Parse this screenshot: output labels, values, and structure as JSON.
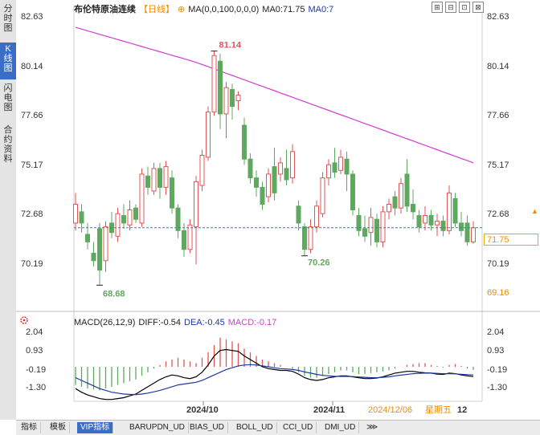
{
  "sidebar": {
    "items": [
      {
        "label": "分\n时\n图",
        "active": false
      },
      {
        "label": "K\n线\n图",
        "active": true
      },
      {
        "label": "闪\n电\n图",
        "active": false
      },
      {
        "label": "合\n约\n资\n料",
        "active": false
      }
    ]
  },
  "header": {
    "symbol": "布伦特原油连续",
    "period": "【日线】",
    "ma_settings": "MA(0,0,100,0,0,0)",
    "ma_value": "MA0:71.75",
    "ma7": "MA0:7"
  },
  "price_axis": {
    "labels": [
      "82.63",
      "80.14",
      "77.66",
      "75.17",
      "72.68",
      "70.19",
      "69.16"
    ],
    "current": "71.75"
  },
  "annotations": {
    "high": "81.14",
    "low1": "68.68",
    "low2": "70.26"
  },
  "macd": {
    "name": "MACD(26,12,9)",
    "diff": "DIFF:-0.54",
    "dea": "DEA:-0.45",
    "macd": "MACD:-0.17",
    "labels": [
      "2.04",
      "0.93",
      "-0.19",
      "-1.30"
    ]
  },
  "time_axis": {
    "labels": [
      "2024/10",
      "2024/11"
    ],
    "date": "2024/12/06",
    "weekday": "星期五",
    "hour": "12"
  },
  "bottom_tabs": [
    "指标",
    "模板",
    "VIP指标",
    "BARUPDN_UD",
    "BIAS_UD",
    "BOLL_UD",
    "CCI_UD",
    "DMI_UD"
  ],
  "colors": {
    "up": "#e05555",
    "down": "#5fa85f",
    "ma": "#d23cd2",
    "diff": "#000000",
    "dea": "#1a3aa0",
    "accent": "#3a6ec6"
  },
  "chart_data": {
    "type": "candlestick",
    "ylim": [
      68.5,
      83.0
    ],
    "ma_start": 82.4,
    "ma_end": 75.2,
    "candles": [
      {
        "o": 72.0,
        "c": 73.0,
        "h": 73.6,
        "l": 71.6
      },
      {
        "o": 72.6,
        "c": 72.0,
        "h": 73.0,
        "l": 71.5
      },
      {
        "o": 71.4,
        "c": 71.0,
        "h": 72.0,
        "l": 70.6
      },
      {
        "o": 70.4,
        "c": 70.0,
        "h": 71.0,
        "l": 69.7
      },
      {
        "o": 71.7,
        "c": 69.5,
        "h": 72.0,
        "l": 68.7
      },
      {
        "o": 70.0,
        "c": 71.8,
        "h": 72.1,
        "l": 69.4
      },
      {
        "o": 72.0,
        "c": 71.5,
        "h": 72.6,
        "l": 71.2
      },
      {
        "o": 71.3,
        "c": 72.5,
        "h": 72.8,
        "l": 71.0
      },
      {
        "o": 72.4,
        "c": 72.0,
        "h": 73.0,
        "l": 71.7
      },
      {
        "o": 71.9,
        "c": 72.7,
        "h": 73.2,
        "l": 71.6
      },
      {
        "o": 72.8,
        "c": 72.2,
        "h": 73.0,
        "l": 72.0
      },
      {
        "o": 72.0,
        "c": 74.6,
        "h": 74.9,
        "l": 71.8
      },
      {
        "o": 74.5,
        "c": 73.9,
        "h": 75.0,
        "l": 73.5
      },
      {
        "o": 73.7,
        "c": 74.9,
        "h": 75.2,
        "l": 73.5
      },
      {
        "o": 74.9,
        "c": 73.9,
        "h": 75.2,
        "l": 73.3
      },
      {
        "o": 73.9,
        "c": 75.0,
        "h": 75.3,
        "l": 73.5
      },
      {
        "o": 74.4,
        "c": 72.8,
        "h": 74.8,
        "l": 72.5
      },
      {
        "o": 72.8,
        "c": 71.6,
        "h": 73.0,
        "l": 71.2
      },
      {
        "o": 71.6,
        "c": 70.6,
        "h": 72.0,
        "l": 70.2
      },
      {
        "o": 70.6,
        "c": 71.9,
        "h": 72.2,
        "l": 70.4
      },
      {
        "o": 71.8,
        "c": 74.2,
        "h": 74.5,
        "l": 69.8
      },
      {
        "o": 74.0,
        "c": 75.6,
        "h": 75.9,
        "l": 73.7
      },
      {
        "o": 75.5,
        "c": 77.9,
        "h": 78.2,
        "l": 75.3
      },
      {
        "o": 77.9,
        "c": 80.9,
        "h": 81.14,
        "l": 77.7
      },
      {
        "o": 80.6,
        "c": 77.8,
        "h": 81.0,
        "l": 77.0
      },
      {
        "o": 77.8,
        "c": 79.2,
        "h": 79.5,
        "l": 76.5
      },
      {
        "o": 79.1,
        "c": 78.2,
        "h": 79.4,
        "l": 77.5
      },
      {
        "o": 78.5,
        "c": 78.8,
        "h": 79.0,
        "l": 78.0
      },
      {
        "o": 77.2,
        "c": 75.4,
        "h": 77.6,
        "l": 75.1
      },
      {
        "o": 75.4,
        "c": 74.4,
        "h": 75.7,
        "l": 74.1
      },
      {
        "o": 74.4,
        "c": 73.9,
        "h": 74.8,
        "l": 73.4
      },
      {
        "o": 73.9,
        "c": 73.0,
        "h": 74.2,
        "l": 72.7
      },
      {
        "o": 73.4,
        "c": 74.6,
        "h": 74.9,
        "l": 73.1
      },
      {
        "o": 75.0,
        "c": 73.6,
        "h": 76.0,
        "l": 73.2
      },
      {
        "o": 74.6,
        "c": 75.2,
        "h": 75.5,
        "l": 74.2
      },
      {
        "o": 74.9,
        "c": 74.3,
        "h": 75.9,
        "l": 74.0
      },
      {
        "o": 74.4,
        "c": 75.8,
        "h": 76.2,
        "l": 74.1
      },
      {
        "o": 72.9,
        "c": 72.0,
        "h": 73.2,
        "l": 71.6
      },
      {
        "o": 71.8,
        "c": 70.6,
        "h": 72.0,
        "l": 70.26
      },
      {
        "o": 70.6,
        "c": 71.8,
        "h": 72.2,
        "l": 70.4
      },
      {
        "o": 71.8,
        "c": 72.9,
        "h": 73.2,
        "l": 71.5
      },
      {
        "o": 72.5,
        "c": 74.4,
        "h": 74.7,
        "l": 72.3
      },
      {
        "o": 74.4,
        "c": 75.1,
        "h": 75.4,
        "l": 74.0
      },
      {
        "o": 75.2,
        "c": 74.7,
        "h": 76.0,
        "l": 74.4
      },
      {
        "o": 74.8,
        "c": 75.5,
        "h": 75.9,
        "l": 74.6
      },
      {
        "o": 75.4,
        "c": 74.6,
        "h": 75.8,
        "l": 73.7
      },
      {
        "o": 74.6,
        "c": 72.7,
        "h": 74.8,
        "l": 72.4
      },
      {
        "o": 72.4,
        "c": 71.6,
        "h": 72.8,
        "l": 71.3
      },
      {
        "o": 71.7,
        "c": 71.3,
        "h": 72.4,
        "l": 71.0
      },
      {
        "o": 71.5,
        "c": 72.3,
        "h": 72.8,
        "l": 70.8
      },
      {
        "o": 72.2,
        "c": 71.0,
        "h": 72.5,
        "l": 70.7
      },
      {
        "o": 71.0,
        "c": 72.6,
        "h": 72.9,
        "l": 70.7
      },
      {
        "o": 72.6,
        "c": 73.0,
        "h": 73.3,
        "l": 72.2
      },
      {
        "o": 73.4,
        "c": 72.8,
        "h": 73.7,
        "l": 72.4
      },
      {
        "o": 72.8,
        "c": 74.1,
        "h": 74.4,
        "l": 72.5
      },
      {
        "o": 74.6,
        "c": 72.9,
        "h": 75.4,
        "l": 72.6
      },
      {
        "o": 73.0,
        "c": 72.6,
        "h": 73.8,
        "l": 72.2
      },
      {
        "o": 72.4,
        "c": 71.8,
        "h": 72.7,
        "l": 71.5
      },
      {
        "o": 72.0,
        "c": 72.4,
        "h": 72.9,
        "l": 71.6
      },
      {
        "o": 72.4,
        "c": 71.9,
        "h": 72.7,
        "l": 71.6
      },
      {
        "o": 71.9,
        "c": 72.1,
        "h": 72.5,
        "l": 71.3
      },
      {
        "o": 72.1,
        "c": 71.6,
        "h": 72.4,
        "l": 71.3
      },
      {
        "o": 71.6,
        "c": 73.6,
        "h": 74.0,
        "l": 71.4
      },
      {
        "o": 73.3,
        "c": 72.0,
        "h": 73.6,
        "l": 71.8
      },
      {
        "o": 72.0,
        "c": 71.6,
        "h": 72.6,
        "l": 71.3
      },
      {
        "o": 72.0,
        "c": 71.0,
        "h": 72.4,
        "l": 70.8
      },
      {
        "o": 71.0,
        "c": 71.75,
        "h": 72.1,
        "l": 70.9
      }
    ],
    "macd_hist": [
      -1.0,
      -1.1,
      -1.2,
      -1.25,
      -1.3,
      -1.2,
      -1.1,
      -1.0,
      -0.9,
      -0.8,
      -0.7,
      -0.5,
      -0.3,
      -0.1,
      0.1,
      0.3,
      0.4,
      0.5,
      0.4,
      0.3,
      0.2,
      0.5,
      0.8,
      1.2,
      1.6,
      1.5,
      1.4,
      1.3,
      1.0,
      0.8,
      0.6,
      0.4,
      0.3,
      0.2,
      0.1,
      0.0,
      -0.1,
      -0.3,
      -0.5,
      -0.6,
      -0.6,
      -0.5,
      -0.4,
      -0.3,
      -0.2,
      -0.2,
      -0.3,
      -0.4,
      -0.4,
      -0.35,
      -0.3,
      -0.25,
      -0.2,
      -0.1,
      0.0,
      0.1,
      0.15,
      0.2,
      0.2,
      0.1,
      0.05,
      -0.05,
      0.1,
      0.15,
      0.05,
      -0.1,
      -0.17
    ],
    "diff": [
      -1.2,
      -1.4,
      -1.55,
      -1.65,
      -1.75,
      -1.8,
      -1.8,
      -1.75,
      -1.7,
      -1.6,
      -1.5,
      -1.3,
      -1.1,
      -0.9,
      -0.7,
      -0.55,
      -0.45,
      -0.5,
      -0.6,
      -0.65,
      -0.55,
      -0.3,
      0.1,
      0.6,
      0.9,
      0.95,
      0.9,
      0.85,
      0.6,
      0.4,
      0.2,
      0.0,
      -0.1,
      -0.15,
      -0.2,
      -0.2,
      -0.25,
      -0.4,
      -0.6,
      -0.7,
      -0.75,
      -0.7,
      -0.6,
      -0.55,
      -0.5,
      -0.5,
      -0.55,
      -0.6,
      -0.65,
      -0.65,
      -0.62,
      -0.55,
      -0.45,
      -0.35,
      -0.3,
      -0.25,
      -0.25,
      -0.3,
      -0.33,
      -0.35,
      -0.4,
      -0.42,
      -0.35,
      -0.38,
      -0.45,
      -0.5,
      -0.54
    ],
    "dea": [
      -0.6,
      -0.75,
      -0.9,
      -1.05,
      -1.2,
      -1.3,
      -1.4,
      -1.45,
      -1.5,
      -1.52,
      -1.53,
      -1.5,
      -1.45,
      -1.38,
      -1.3,
      -1.2,
      -1.1,
      -1.0,
      -0.95,
      -0.9,
      -0.85,
      -0.75,
      -0.6,
      -0.45,
      -0.3,
      -0.15,
      -0.05,
      0.05,
      0.1,
      0.12,
      0.1,
      0.05,
      0.0,
      -0.05,
      -0.1,
      -0.12,
      -0.15,
      -0.2,
      -0.28,
      -0.35,
      -0.42,
      -0.47,
      -0.5,
      -0.52,
      -0.53,
      -0.53,
      -0.54,
      -0.56,
      -0.58,
      -0.6,
      -0.6,
      -0.58,
      -0.55,
      -0.5,
      -0.46,
      -0.42,
      -0.38,
      -0.36,
      -0.35,
      -0.35,
      -0.36,
      -0.38,
      -0.38,
      -0.39,
      -0.41,
      -0.43,
      -0.45
    ],
    "macd_ylim": [
      -1.9,
      2.3
    ]
  }
}
